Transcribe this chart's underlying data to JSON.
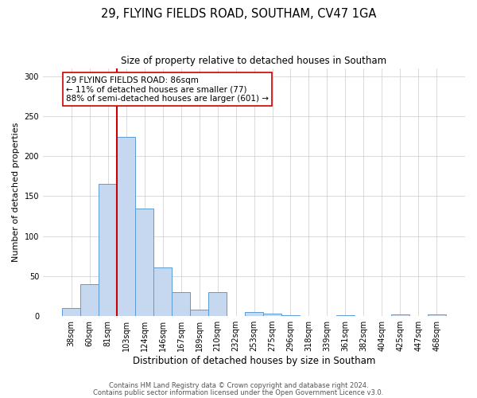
{
  "title": "29, FLYING FIELDS ROAD, SOUTHAM, CV47 1GA",
  "subtitle": "Size of property relative to detached houses in Southam",
  "xlabel": "Distribution of detached houses by size in Southam",
  "ylabel": "Number of detached properties",
  "bar_labels": [
    "38sqm",
    "60sqm",
    "81sqm",
    "103sqm",
    "124sqm",
    "146sqm",
    "167sqm",
    "189sqm",
    "210sqm",
    "232sqm",
    "253sqm",
    "275sqm",
    "296sqm",
    "318sqm",
    "339sqm",
    "361sqm",
    "382sqm",
    "404sqm",
    "425sqm",
    "447sqm",
    "468sqm"
  ],
  "bar_heights": [
    10,
    40,
    165,
    224,
    134,
    61,
    30,
    8,
    30,
    0,
    5,
    3,
    1,
    0,
    0,
    1,
    0,
    0,
    2,
    0,
    2
  ],
  "bar_color": "#c5d8f0",
  "bar_edge_color": "#5b9bd5",
  "vline_color": "#cc0000",
  "vline_label_idx": 2,
  "annotation_text": "29 FLYING FIELDS ROAD: 86sqm\n← 11% of detached houses are smaller (77)\n88% of semi-detached houses are larger (601) →",
  "annotation_box_color": "#ffffff",
  "annotation_box_edge": "#cc0000",
  "ylim": [
    0,
    310
  ],
  "yticks": [
    0,
    50,
    100,
    150,
    200,
    250,
    300
  ],
  "footer_line1": "Contains HM Land Registry data © Crown copyright and database right 2024.",
  "footer_line2": "Contains public sector information licensed under the Open Government Licence v3.0.",
  "bg_color": "#ffffff",
  "grid_color": "#cccccc",
  "title_fontsize": 10.5,
  "subtitle_fontsize": 8.5,
  "ylabel_fontsize": 8,
  "xlabel_fontsize": 8.5,
  "tick_fontsize": 7,
  "annotation_fontsize": 7.5,
  "footer_fontsize": 6
}
